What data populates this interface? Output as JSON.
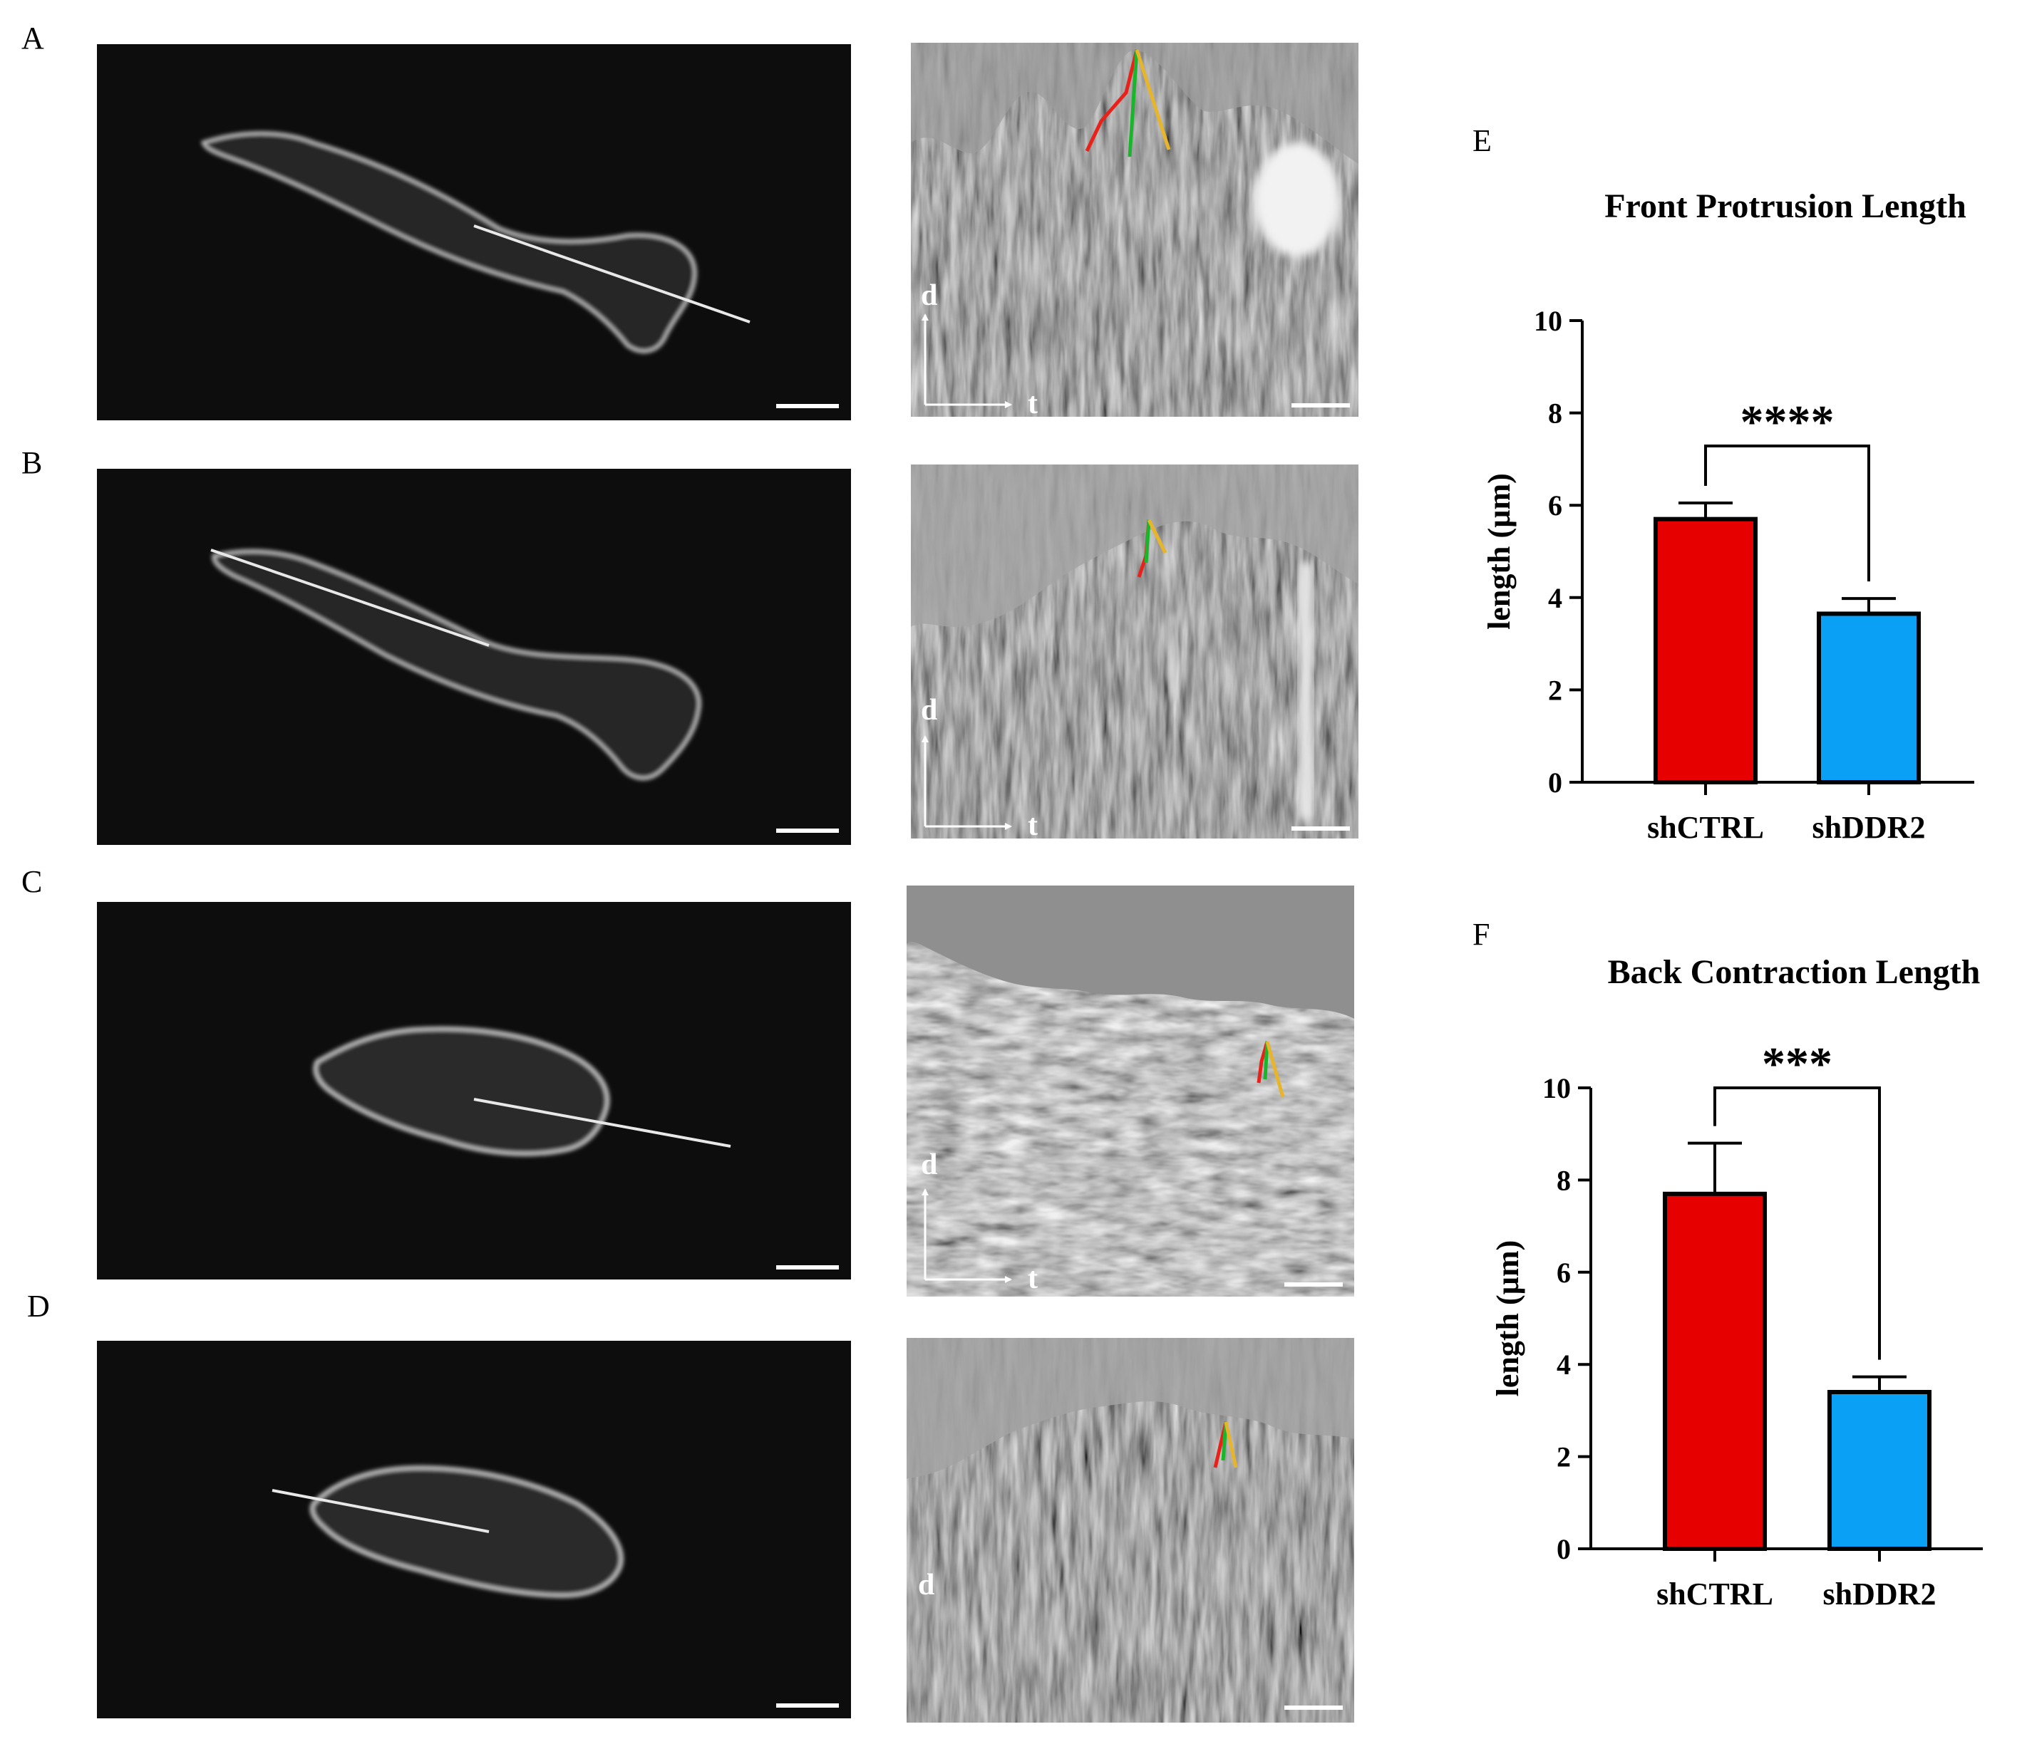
{
  "panel_letters": [
    "A",
    "B",
    "C",
    "D",
    "E",
    "F"
  ],
  "kymograph_axis": {
    "distance": "d",
    "time": "t"
  },
  "annotation_colors": {
    "red": "#e8221a",
    "green": "#19b52a",
    "yellow": "#e7b52c",
    "trace": "#e8e8e8"
  },
  "chart_data": [
    {
      "type": "bar",
      "panel": "E",
      "title": "Front Protrusion Length",
      "ylabel": "length (µm)",
      "xlabel": "",
      "categories": [
        "shCTRL",
        "shDDR2"
      ],
      "values": [
        5.7,
        3.65
      ],
      "errors": [
        0.35,
        0.33
      ],
      "colors": [
        "#e60000",
        "#0aa0f5"
      ],
      "ylim": [
        0,
        10
      ],
      "yticks": [
        "0",
        "2",
        "4",
        "6",
        "8",
        "10"
      ],
      "significance": "****",
      "grid": false
    },
    {
      "type": "bar",
      "panel": "F",
      "title": "Back Contraction Length",
      "ylabel": "length (µm)",
      "xlabel": "",
      "categories": [
        "shCTRL",
        "shDDR2"
      ],
      "values": [
        7.7,
        3.4
      ],
      "errors": [
        1.1,
        0.33
      ],
      "colors": [
        "#e60000",
        "#0aa0f5"
      ],
      "ylim": [
        0,
        10
      ],
      "yticks": [
        "0",
        "2",
        "4",
        "6",
        "8",
        "10"
      ],
      "significance": "***",
      "grid": false
    }
  ]
}
